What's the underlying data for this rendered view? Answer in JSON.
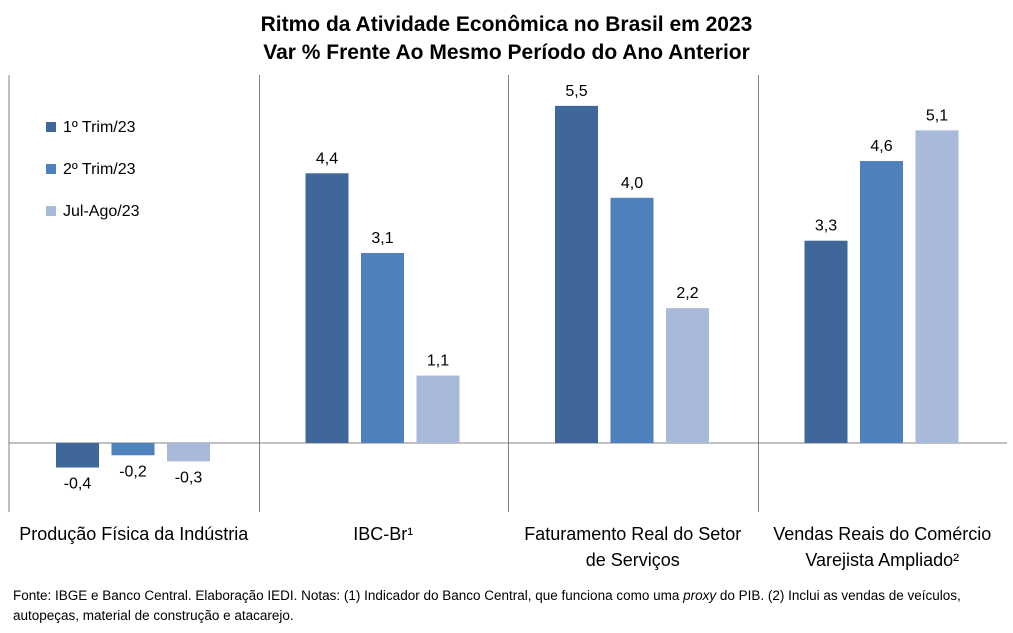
{
  "chart_data": {
    "type": "bar",
    "title": "Ritmo da Atividade Econômica no Brasil em 2023",
    "subtitle": "Var % Frente Ao Mesmo Período do Ano Anterior",
    "categories": [
      [
        "Produção Física da Indústria"
      ],
      [
        "IBC-Br¹"
      ],
      [
        "Faturamento Real do Setor",
        "de Serviços"
      ],
      [
        "Vendas Reais do Comércio",
        "Varejista Ampliado²"
      ]
    ],
    "series": [
      {
        "name": "1º Trim/23",
        "color": "#3f679a",
        "values": [
          -0.4,
          4.4,
          5.5,
          3.3
        ]
      },
      {
        "name": "2º Trim/23",
        "color": "#4f81bd",
        "values": [
          -0.2,
          3.1,
          4.0,
          4.6
        ]
      },
      {
        "name": "Jul-Ago/23",
        "color": "#a9b9d9",
        "values": [
          -0.3,
          1.1,
          2.2,
          5.1
        ]
      }
    ],
    "data_labels": [
      [
        "-0,4",
        "4,4",
        "5,5",
        "3,3"
      ],
      [
        "-0,2",
        "3,1",
        "4,0",
        "4,6"
      ],
      [
        "-0,3",
        "1,1",
        "2,2",
        "5,1"
      ]
    ],
    "ylim": [
      -1.0,
      6.0
    ],
    "legend_position": "top-left",
    "grid": false,
    "axis_color": "#808080"
  },
  "footer": {
    "prefix": "Fonte: IBGE e Banco Central. Elaboração IEDI. Notas: (1) Indicador do Banco Central, que funciona como uma ",
    "italic": "proxy",
    "suffix": " do PIB. (2) Inclui as vendas de veículos, autopeças, material de construção e atacarejo."
  }
}
